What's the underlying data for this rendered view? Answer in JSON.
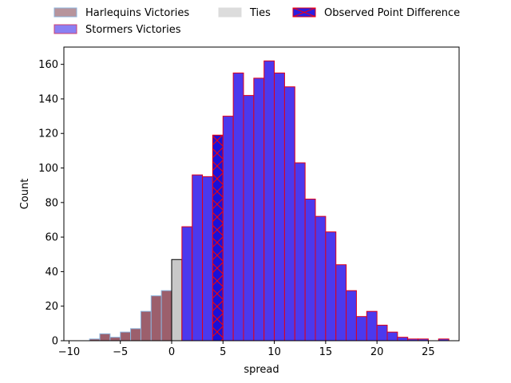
{
  "chart_data": {
    "type": "bar",
    "xlabel": "spread",
    "ylabel": "Count",
    "xlim": [
      -10.5,
      28.0
    ],
    "ylim": [
      0,
      170
    ],
    "xticks": [
      -10,
      -5,
      0,
      5,
      10,
      15,
      20,
      25
    ],
    "yticks": [
      0,
      20,
      40,
      60,
      80,
      100,
      120,
      140,
      160
    ],
    "grid": false,
    "legend_position": "top, above plot",
    "bin_width": 1,
    "series": [
      {
        "name": "Harlequins Victories",
        "color": "#9c5f6c",
        "edge_color": "#8cb4dc",
        "bins": [
          {
            "x": -9,
            "value": 0
          },
          {
            "x": -8,
            "value": 1
          },
          {
            "x": -7,
            "value": 4
          },
          {
            "x": -6,
            "value": 2
          },
          {
            "x": -5,
            "value": 5
          },
          {
            "x": -4,
            "value": 7
          },
          {
            "x": -3,
            "value": 17
          },
          {
            "x": -2,
            "value": 26
          },
          {
            "x": -1,
            "value": 29
          }
        ]
      },
      {
        "name": "Ties",
        "color": "#c8c8c8",
        "edge_color": "#000000",
        "bins": [
          {
            "x": 0,
            "value": 47
          }
        ]
      },
      {
        "name": "Stormers Victories",
        "color": "#4b39ee",
        "edge_color": "#e0001a",
        "bins": [
          {
            "x": 1,
            "value": 66
          },
          {
            "x": 2,
            "value": 96
          },
          {
            "x": 3,
            "value": 95
          },
          {
            "x": 4,
            "value": 119
          },
          {
            "x": 5,
            "value": 130
          },
          {
            "x": 6,
            "value": 155
          },
          {
            "x": 7,
            "value": 142
          },
          {
            "x": 8,
            "value": 152
          },
          {
            "x": 9,
            "value": 162
          },
          {
            "x": 10,
            "value": 155
          },
          {
            "x": 11,
            "value": 147
          },
          {
            "x": 12,
            "value": 103
          },
          {
            "x": 13,
            "value": 82
          },
          {
            "x": 14,
            "value": 72
          },
          {
            "x": 15,
            "value": 63
          },
          {
            "x": 16,
            "value": 44
          },
          {
            "x": 17,
            "value": 29
          },
          {
            "x": 18,
            "value": 14
          },
          {
            "x": 19,
            "value": 17
          },
          {
            "x": 20,
            "value": 9
          },
          {
            "x": 21,
            "value": 5
          },
          {
            "x": 22,
            "value": 2
          },
          {
            "x": 23,
            "value": 1
          },
          {
            "x": 24,
            "value": 1
          },
          {
            "x": 25,
            "value": 0
          },
          {
            "x": 26,
            "value": 1
          }
        ]
      }
    ],
    "highlight": {
      "name": "Observed Point Difference",
      "x": 4,
      "value": 119,
      "color": "#1a10d8",
      "hatch_color": "#ff0000"
    },
    "legend": [
      {
        "key": "harlequins",
        "label": "Harlequins Victories",
        "color": "#b7949c",
        "edge": "#8cb4dc"
      },
      {
        "key": "stormers",
        "label": "Stormers Victories",
        "color": "#8a80f3",
        "edge": "#d04070"
      },
      {
        "key": "ties",
        "label": "Ties",
        "color": "#dcdcdc",
        "edge": "#dcdcdc"
      },
      {
        "key": "observed",
        "label": "Observed Point Difference",
        "color": "#2a1ee0",
        "edge": "#e0001a"
      }
    ]
  }
}
